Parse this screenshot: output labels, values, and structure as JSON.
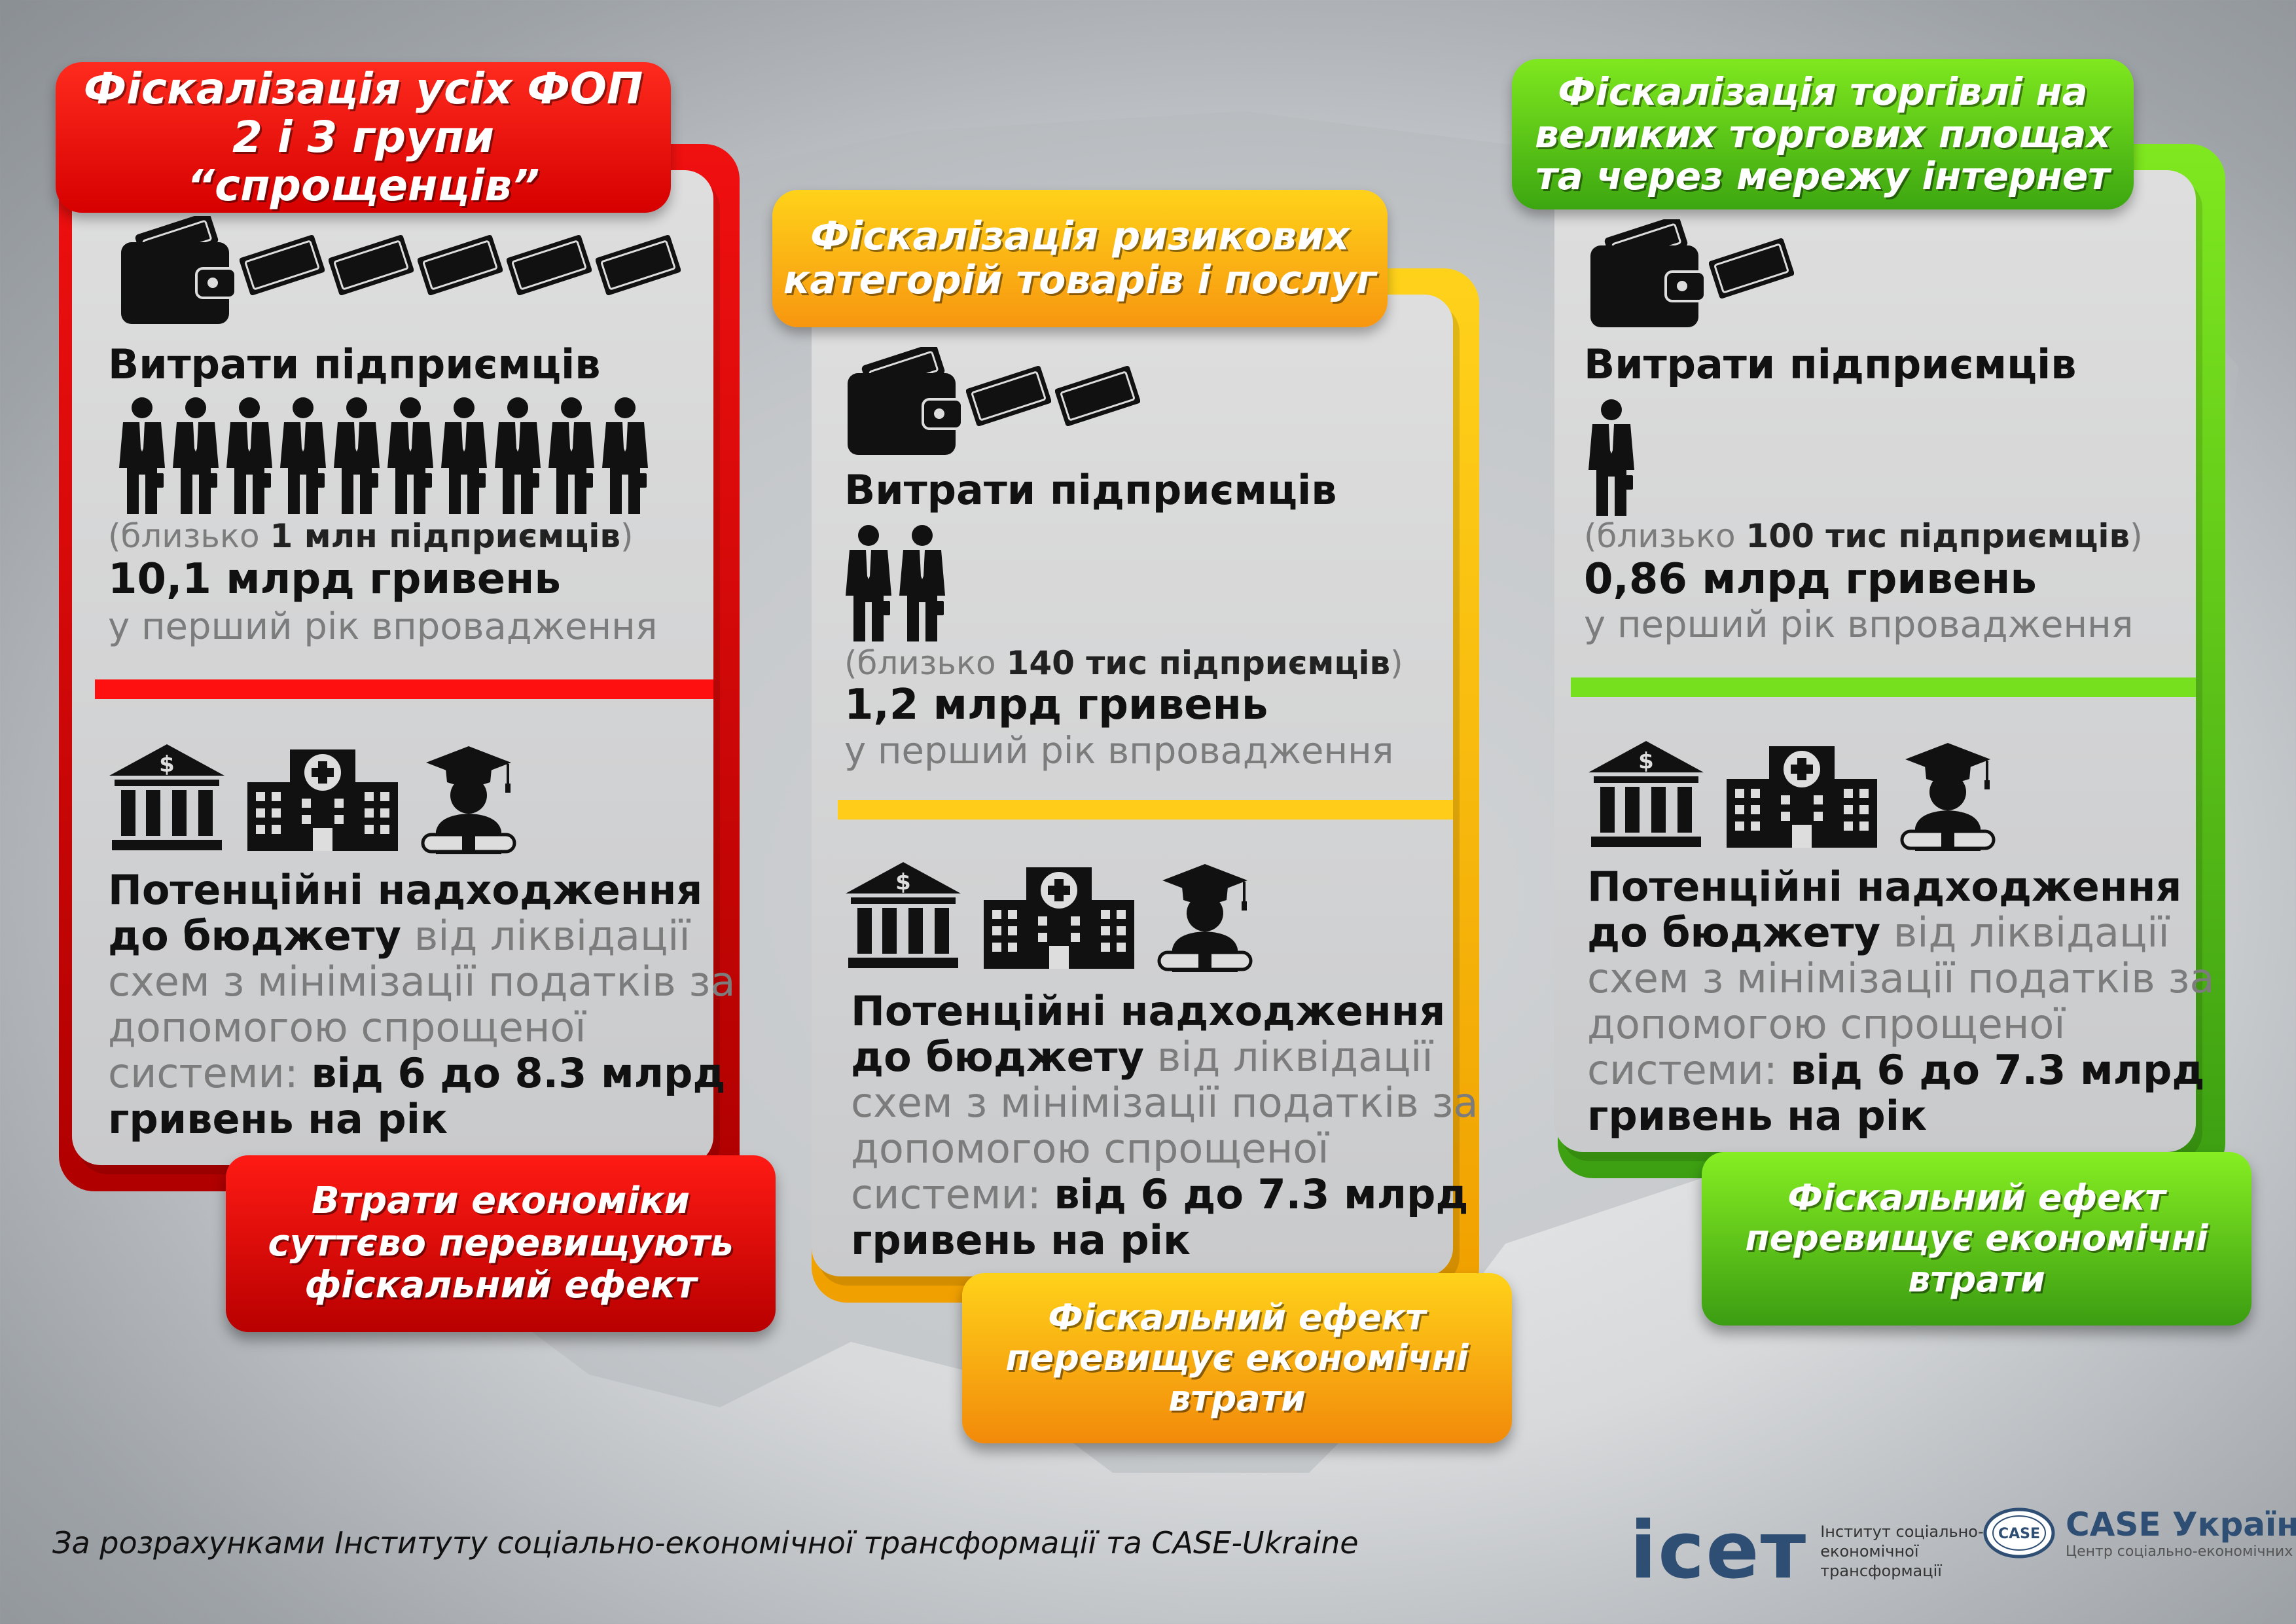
{
  "columns": [
    {
      "title_line1": "Фіскалізація усіх ФОП",
      "title_line2": "2 і 3 групи “спрощенців”",
      "costs_label": "Витрати підприємців",
      "note_open": "(близько ",
      "note_bold": "1 млн підприємців",
      "note_close": ")",
      "amount": "10,1 млрд гривень",
      "period": "у перший рік впровадження",
      "p_bold1": "Потенційні надходження",
      "p_bold2": "до бюджету",
      "p_regular": " від ліквідації схем з мінімізації податків за допомогою спрощеної системи: ",
      "p_bold3": "від 6 до 8.3 млрд гривень на рік",
      "result_line1": "Втрати економіки",
      "result_line2": "суттєво перевищують",
      "result_line3": "фіскальний ефект"
    },
    {
      "title_line1": "Фіскалізація ризикових",
      "title_line2": "категорій товарів і послуг",
      "costs_label": "Витрати підприємців",
      "note_open": "(близько ",
      "note_bold": "140 тис підприємців",
      "note_close": ")",
      "amount": "1,2 млрд гривень",
      "period": "у перший рік впровадження",
      "p_bold1": "Потенційні надходження",
      "p_bold2": "до бюджету",
      "p_regular": " від ліквідації схем з мінімізації податків за допомогою спрощеної системи: ",
      "p_bold3": "від 6 до 7.3 млрд гривень на рік",
      "result_line1": "Фіскальний ефект",
      "result_line2": "перевищує економічні",
      "result_line3": "втрати"
    },
    {
      "title_line1": "Фіскалізація торгівлі на",
      "title_line2": "великих торгових площах",
      "title_line3": "та через мережу інтернет",
      "costs_label": "Витрати підприємців",
      "note_open": "(близько ",
      "note_bold": "100 тис підприємців",
      "note_close": ")",
      "amount": "0,86 млрд гривень",
      "period": "у перший рік впровадження",
      "p_bold1": "Потенційні надходження",
      "p_bold2": "до бюджету",
      "p_regular": " від ліквідації схем з мінімізації податків за допомогою спрощеної системи: ",
      "p_bold3": "від 6 до 7.3 млрд гривень на рік",
      "result_line1": "Фіскальний ефект",
      "result_line2": "перевищує економічні",
      "result_line3": "втрати"
    }
  ],
  "footer": "За розрахунками Інституту соціально-економічної трансформації та CASE-Ukraine",
  "logo_icet": {
    "mark": "icет",
    "line1": "Інститут соціально-",
    "line2": "економічної трансформації"
  },
  "logo_case": {
    "badge": "CASE",
    "name": "CASE Україна",
    "tagline": "Центр соціально-економічних досліджень"
  },
  "icons": {
    "bills_counts": [
      5,
      2,
      1
    ],
    "people_counts": [
      10,
      2,
      1
    ],
    "wallet": "wallet-icon",
    "bill": "banknote-icon",
    "person": "businessman-icon",
    "bank": "bank-icon",
    "hospital": "hospital-icon",
    "graduate": "graduate-icon"
  },
  "colors": {
    "red": "#e60000",
    "yellow": "#ffc21a",
    "orange": "#f7960f",
    "green": "#5cc01a"
  }
}
